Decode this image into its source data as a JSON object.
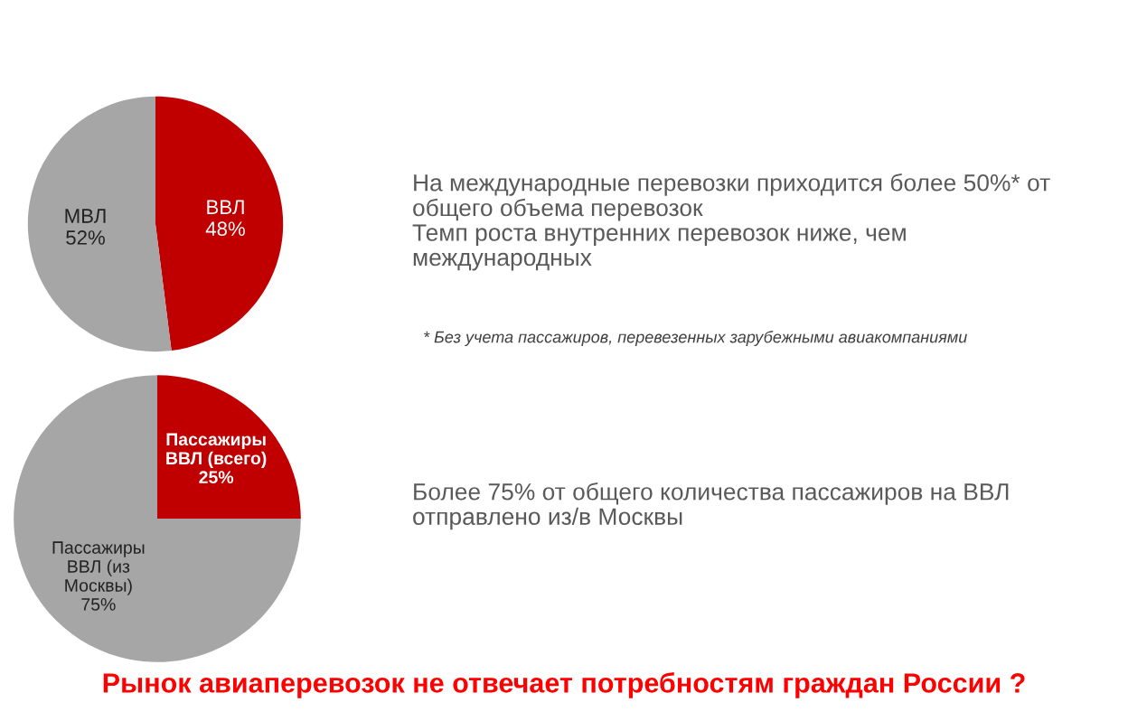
{
  "chart_data": [
    {
      "type": "pie",
      "categories": [
        "ВВЛ",
        "МВЛ"
      ],
      "values": [
        48,
        52
      ],
      "colors": [
        "#c00000",
        "#a6a6a6"
      ],
      "value_labels": [
        "48%",
        "52%"
      ],
      "annotations": [
        "На международные перевозки приходится более 50%* от\nобщего объема перевозок\nТемп роста внутренних перевозок ниже, чем\nмеждународных",
        "* Без учета пассажиров, перевезенных зарубежными авиакомпаниями"
      ]
    },
    {
      "type": "pie",
      "categories": [
        "Пассажиры\nВВЛ (всего)",
        "Пассажиры\nВВЛ (из\nМосквы)"
      ],
      "values": [
        25,
        75
      ],
      "colors": [
        "#c00000",
        "#a6a6a6"
      ],
      "value_labels": [
        "25%",
        "75%"
      ],
      "annotations": [
        "Более 75% от общего количества пассажиров на ВВЛ\nотправлено из/в Москвы",
        "Рынок авиаперевозок не отвечает потребностям граждан России ?"
      ]
    }
  ]
}
